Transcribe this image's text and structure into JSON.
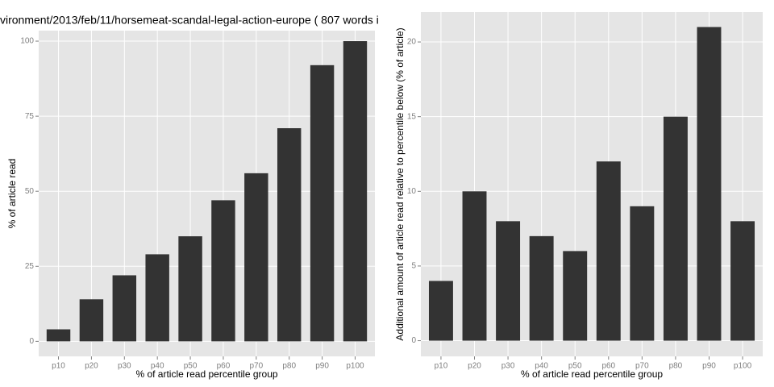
{
  "chart_data": [
    {
      "type": "bar",
      "title": "vironment/2013/feb/11/horsemeat-scandal-legal-action-europe ( 807 words i",
      "x_label": "% of article read percentile group",
      "y_label": "% of article read",
      "categories": [
        "p10",
        "p20",
        "p30",
        "p40",
        "p50",
        "p60",
        "p70",
        "p80",
        "p90",
        "p100"
      ],
      "values": [
        4,
        14,
        22,
        29,
        35,
        47,
        56,
        71,
        92,
        100
      ],
      "color": "#333333",
      "ylim": [
        -5,
        103.5
      ],
      "yticks": [
        0,
        25,
        50,
        75,
        100
      ],
      "grid": true
    },
    {
      "type": "bar",
      "x_label": "% of article read percentile group",
      "y_label": "Additional amount of article read relative to percentile below (% of article)",
      "categories": [
        "p10",
        "p20",
        "p30",
        "p40",
        "p50",
        "p60",
        "p70",
        "p80",
        "p90",
        "p100"
      ],
      "values": [
        4,
        10,
        8,
        7,
        6,
        12,
        9,
        15,
        21,
        8
      ],
      "color": "#333333",
      "ylim": [
        -1.05,
        22
      ],
      "yticks": [
        0,
        5,
        10,
        15,
        20
      ],
      "grid": true
    }
  ]
}
